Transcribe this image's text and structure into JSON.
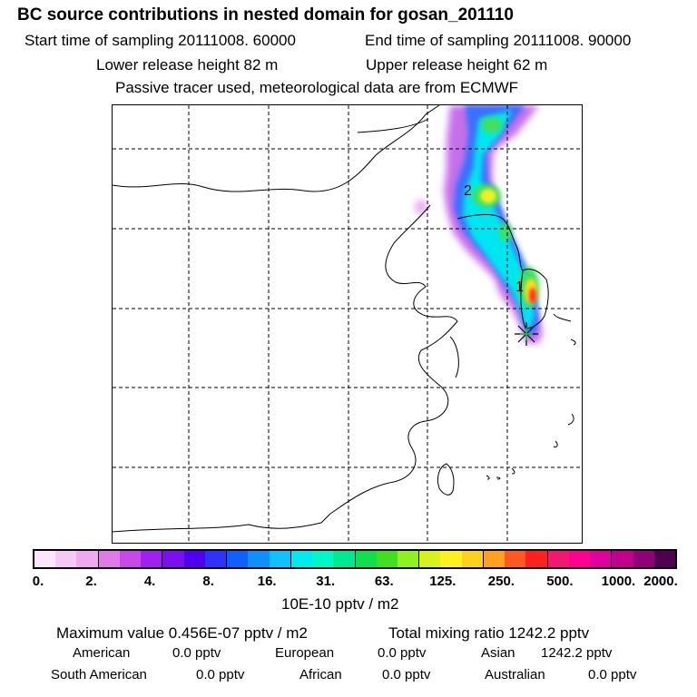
{
  "header": {
    "title": "BC  source contributions in nested domain for gosan_201110",
    "start_label": "Start time of sampling 20111008. 60000",
    "end_label": "End time of sampling 20111008. 90000",
    "lower_release": "Lower release height   82 m",
    "upper_release": "Upper release height   62 m",
    "tracer_note": "Passive tracer used, meteorological data are from ECMWF"
  },
  "map": {
    "plume_labels": [
      "2",
      "1"
    ],
    "receptor_marker": "star-receptor"
  },
  "colorbar": {
    "colors": [
      "#fbe6fb",
      "#f6c8f6",
      "#f0a8f0",
      "#e07ae8",
      "#c848e8",
      "#a020f0",
      "#7a10f0",
      "#5000f0",
      "#3030ff",
      "#1060ff",
      "#1090ff",
      "#10c0ff",
      "#00eaf0",
      "#00f8c8",
      "#00e890",
      "#10e050",
      "#40e020",
      "#90f020",
      "#d8f020",
      "#fff020",
      "#ffd020",
      "#ffa020",
      "#ff5820",
      "#ff2020",
      "#f01870",
      "#ff0090",
      "#e000a0",
      "#c0008c",
      "#900078",
      "#500050"
    ],
    "tick_labels": [
      "0.",
      "2.",
      "4.",
      "8.",
      "16.",
      "31.",
      "63.",
      "125.",
      "250.",
      "500.",
      "1000.",
      "2000."
    ],
    "units": "10E-10 pptv / m2"
  },
  "stats": {
    "max_value": "Maximum value  0.456E-07 pptv / m2",
    "total_mixing": "Total mixing ratio     1242.2 pptv",
    "regions": [
      {
        "name": "American",
        "value": "0.0 pptv"
      },
      {
        "name": "European",
        "value": "0.0 pptv"
      },
      {
        "name": "Asian",
        "value": "1242.2 pptv"
      },
      {
        "name": "South American",
        "value": "0.0 pptv"
      },
      {
        "name": "African",
        "value": "0.0 pptv"
      },
      {
        "name": "Australian",
        "value": "0.0 pptv"
      }
    ]
  }
}
